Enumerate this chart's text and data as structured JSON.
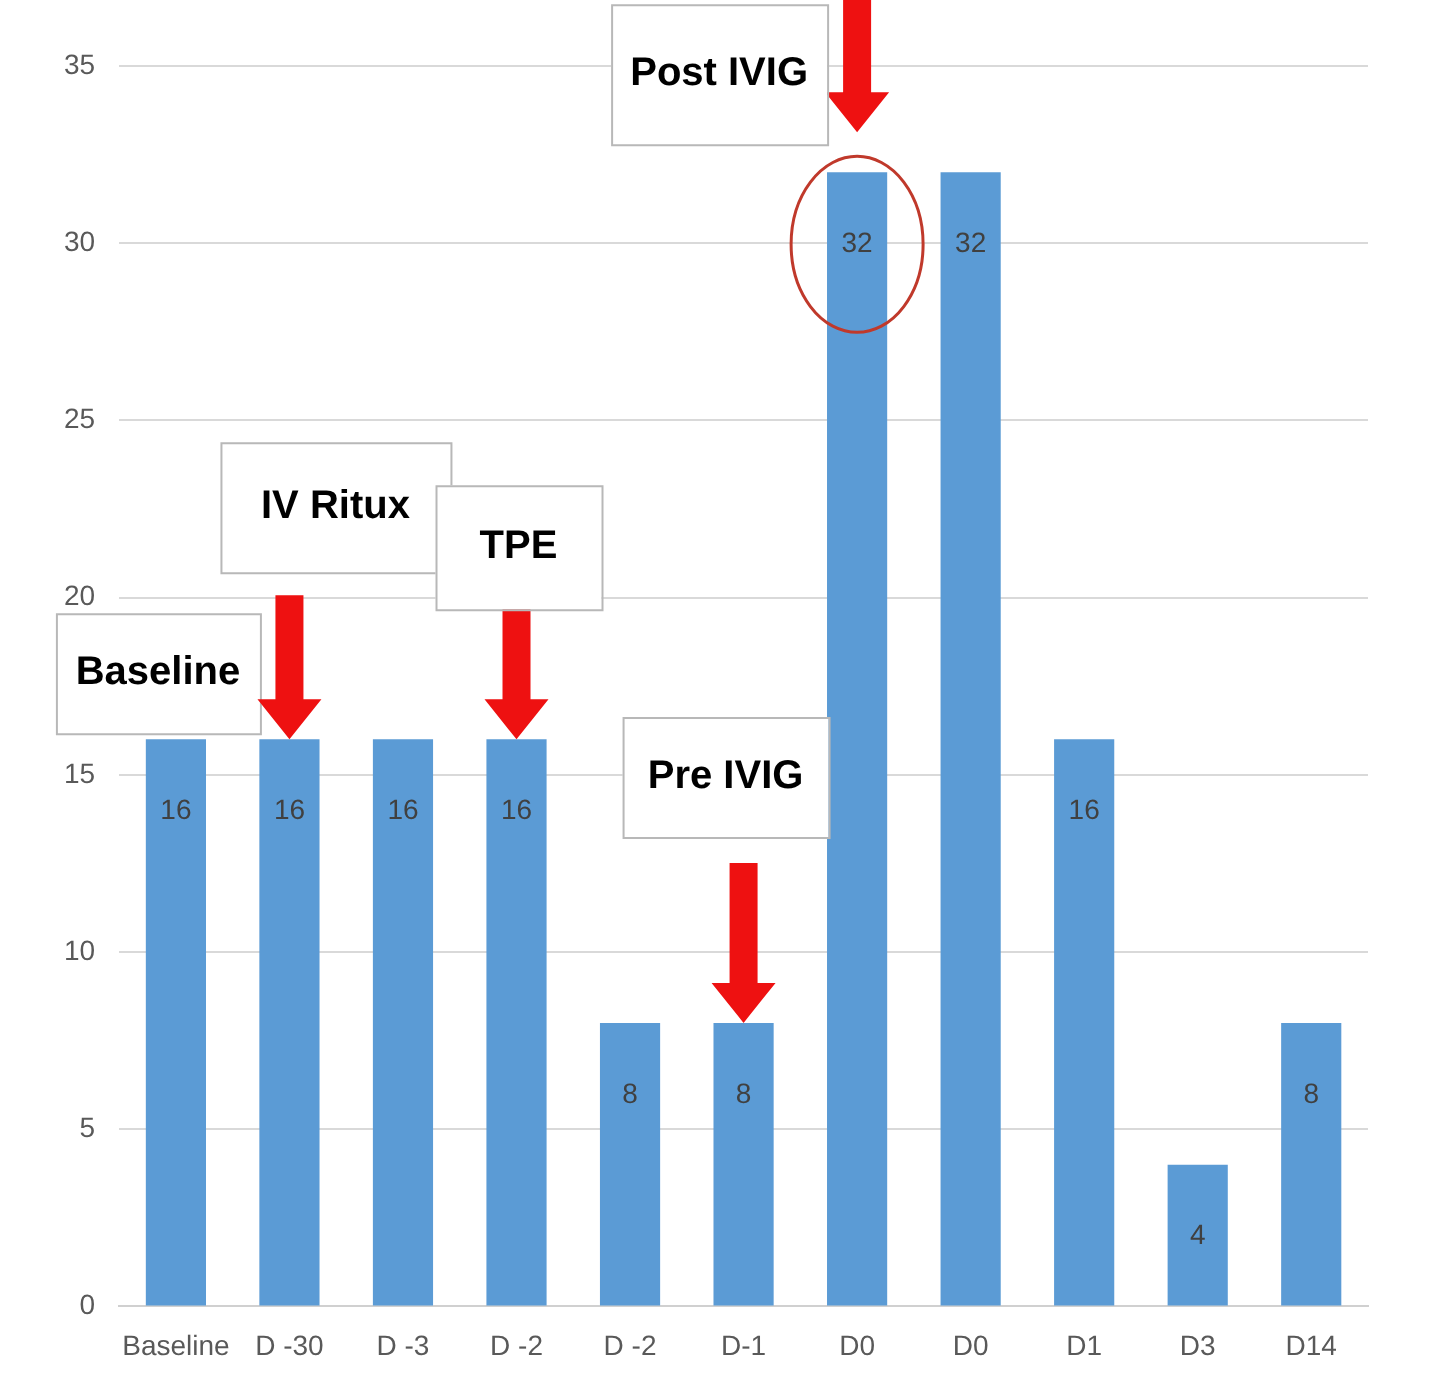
{
  "chart_data": {
    "type": "bar",
    "categories": [
      "Baseline",
      "D -30",
      "D -3",
      "D -2",
      "D -2",
      "D-1",
      "D0",
      "D0",
      "D1",
      "D3",
      "D14"
    ],
    "values": [
      16,
      16,
      16,
      16,
      8,
      8,
      32,
      32,
      16,
      4,
      8
    ],
    "color": "#5b9bd5",
    "ylim": [
      0,
      35
    ],
    "yticks": [
      0,
      5,
      10,
      15,
      20,
      25,
      30,
      35
    ],
    "grid": "y",
    "legend": false,
    "data_labels": true,
    "annotations": [
      "Baseline",
      "IV Ritux",
      "TPE",
      "Pre IVIG",
      "Post IVIG"
    ]
  }
}
